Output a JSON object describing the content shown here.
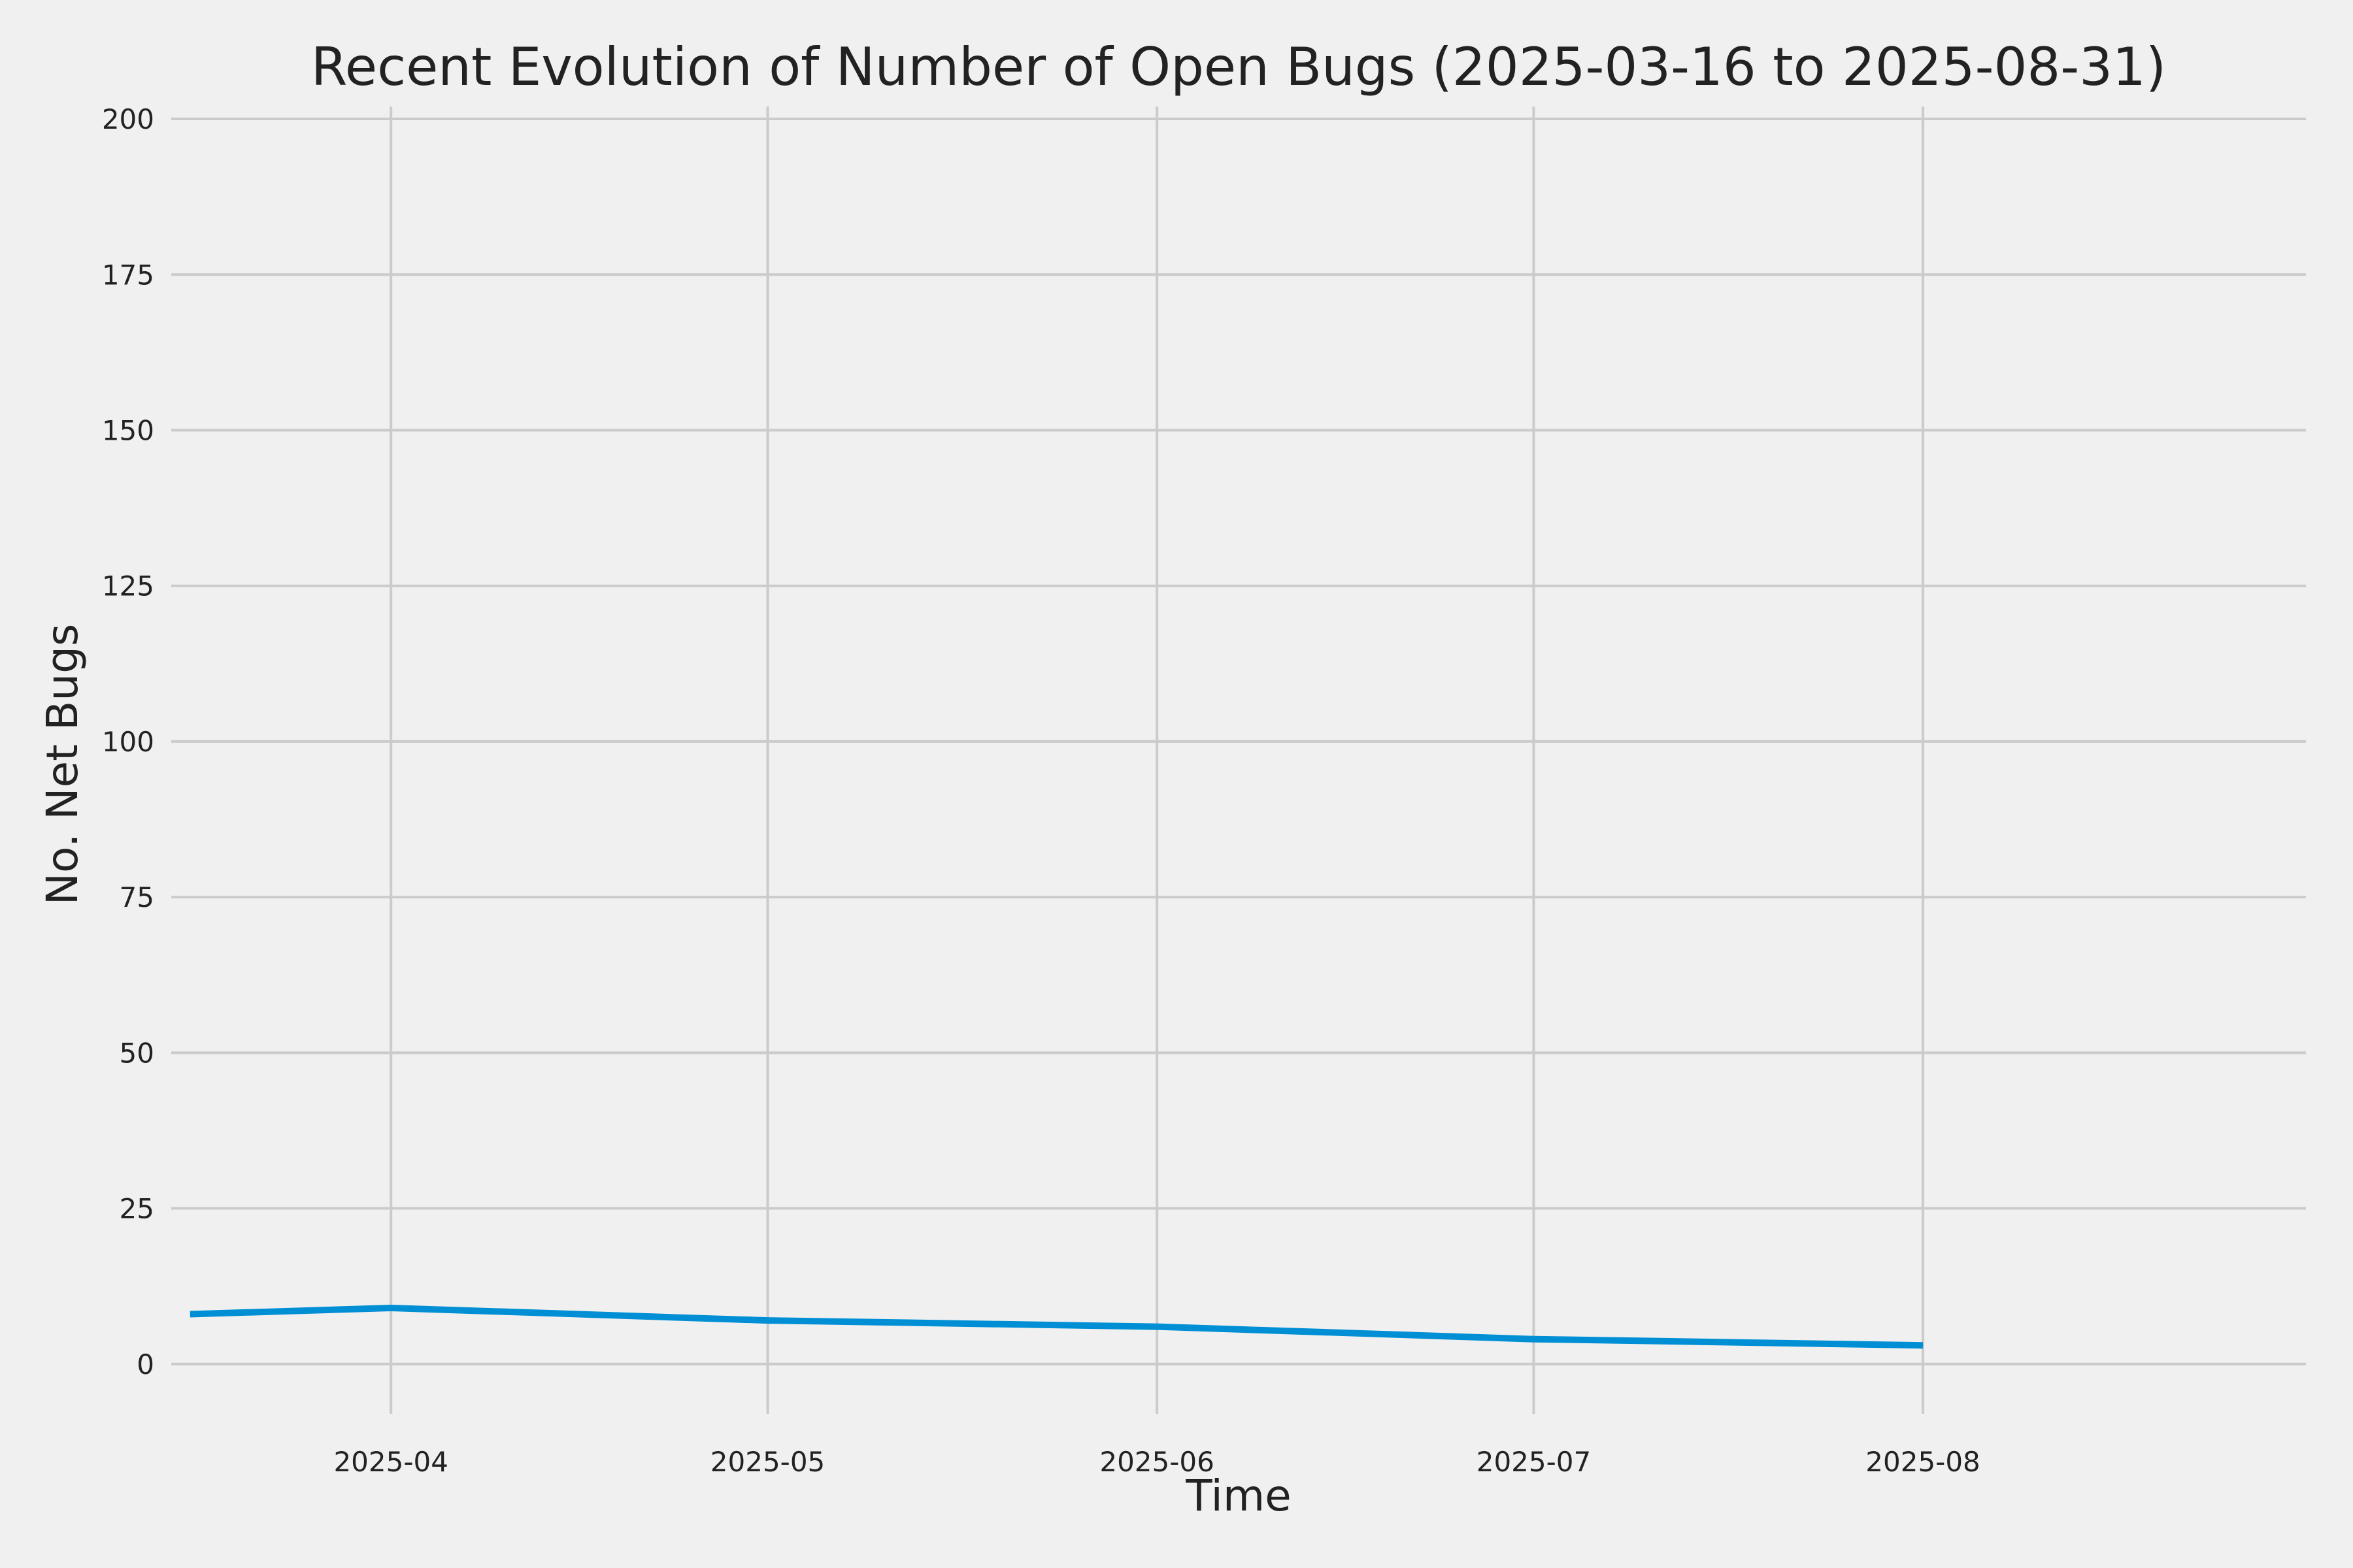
{
  "chart_data": {
    "type": "line",
    "title": "Recent Evolution of Number of Open Bugs (2025-03-16 to 2025-08-31)",
    "xlabel": "Time",
    "ylabel": "No. Net Bugs",
    "grid": true,
    "legend": "none",
    "colors": {
      "background": "#f0f0f0",
      "grid": "#cbcbcb",
      "line": "#008fd5",
      "text": "#222222"
    },
    "xlim": [
      "2025-03-16",
      "2025-08-31"
    ],
    "ylim": [
      -8,
      202
    ],
    "x_ticks": [
      "2025-04",
      "2025-05",
      "2025-06",
      "2025-07",
      "2025-08"
    ],
    "y_ticks": [
      0,
      25,
      50,
      75,
      100,
      125,
      150,
      175,
      200
    ],
    "series": [
      {
        "x": [
          "2025-03-16",
          "2025-04-01",
          "2025-05-01",
          "2025-06-01",
          "2025-07-01",
          "2025-08-01"
        ],
        "y": [
          8,
          9,
          7,
          6,
          4,
          3
        ]
      }
    ]
  }
}
